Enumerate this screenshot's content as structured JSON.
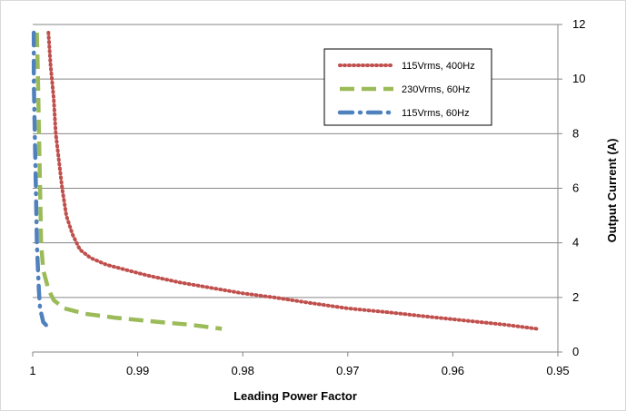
{
  "chart_data": {
    "type": "line",
    "xlabel": "Leading Power Factor",
    "ylabel": "Output Current (A)",
    "xlim": [
      1,
      0.95
    ],
    "ylim": [
      0,
      12
    ],
    "x_ticks": [
      "1",
      "0.99",
      "0.98",
      "0.97",
      "0.96",
      "0.95"
    ],
    "y_ticks": [
      "0",
      "2",
      "4",
      "6",
      "8",
      "10",
      "12"
    ],
    "grid": "horizontal",
    "legend_position": "top-right",
    "series": [
      {
        "name": "115Vrms, 400Hz",
        "color": "#c0504d",
        "style": "dotted",
        "points": [
          [
            0.9985,
            11.7
          ],
          [
            0.9983,
            10.5
          ],
          [
            0.998,
            9.3
          ],
          [
            0.9978,
            8.0
          ],
          [
            0.9975,
            7.0
          ],
          [
            0.9972,
            6.0
          ],
          [
            0.9968,
            5.0
          ],
          [
            0.9962,
            4.3
          ],
          [
            0.9955,
            3.75
          ],
          [
            0.9945,
            3.45
          ],
          [
            0.993,
            3.2
          ],
          [
            0.991,
            3.0
          ],
          [
            0.989,
            2.8
          ],
          [
            0.986,
            2.55
          ],
          [
            0.983,
            2.35
          ],
          [
            0.98,
            2.15
          ],
          [
            0.977,
            2.0
          ],
          [
            0.974,
            1.82
          ],
          [
            0.97,
            1.6
          ],
          [
            0.966,
            1.45
          ],
          [
            0.962,
            1.28
          ],
          [
            0.958,
            1.12
          ],
          [
            0.955,
            1.0
          ],
          [
            0.952,
            0.85
          ]
        ]
      },
      {
        "name": "230Vrms, 60Hz",
        "color": "#9bbb59",
        "style": "dashed",
        "points": [
          [
            0.9996,
            11.7
          ],
          [
            0.9995,
            10.0
          ],
          [
            0.9994,
            8.0
          ],
          [
            0.9993,
            6.0
          ],
          [
            0.9992,
            4.0
          ],
          [
            0.999,
            3.0
          ],
          [
            0.9985,
            2.3
          ],
          [
            0.998,
            1.9
          ],
          [
            0.997,
            1.6
          ],
          [
            0.995,
            1.4
          ],
          [
            0.992,
            1.25
          ],
          [
            0.988,
            1.1
          ],
          [
            0.985,
            1.0
          ],
          [
            0.982,
            0.85
          ]
        ]
      },
      {
        "name": "115Vrms, 60Hz",
        "color": "#4f81bd",
        "style": "dash-dot",
        "points": [
          [
            0.9999,
            11.7
          ],
          [
            0.9999,
            10.0
          ],
          [
            0.9998,
            8.0
          ],
          [
            0.9997,
            6.0
          ],
          [
            0.9996,
            4.0
          ],
          [
            0.9995,
            3.0
          ],
          [
            0.9994,
            2.2
          ],
          [
            0.9993,
            1.6
          ],
          [
            0.999,
            1.1
          ],
          [
            0.9983,
            0.8
          ]
        ]
      }
    ]
  }
}
